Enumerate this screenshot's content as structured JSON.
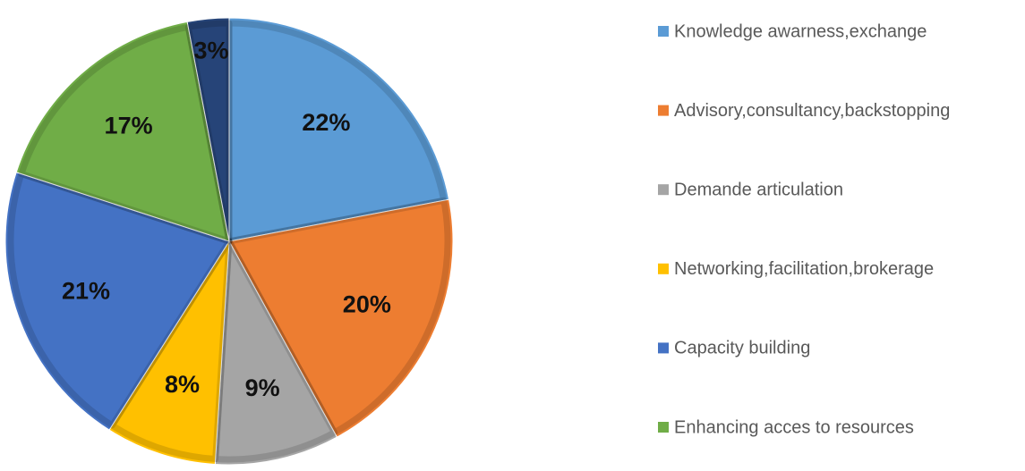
{
  "chart_data": {
    "type": "pie",
    "categories": [
      "Knowledge awarness,exchange",
      "Advisory,consultancy,backstopping",
      "Demande articulation",
      "Networking,facilitation,brokerage",
      "Capacity building",
      "Enhancing acces to resources",
      null
    ],
    "values": [
      22,
      20,
      9,
      8,
      21,
      17,
      3
    ],
    "value_labels": [
      "22%",
      "20%",
      "9%",
      "8%",
      "21%",
      "17%",
      "3%"
    ],
    "colors": [
      "#5b9bd5",
      "#ed7d31",
      "#a5a5a5",
      "#ffc000",
      "#4472c4",
      "#70ad47",
      "#264478"
    ],
    "legend": "right"
  }
}
